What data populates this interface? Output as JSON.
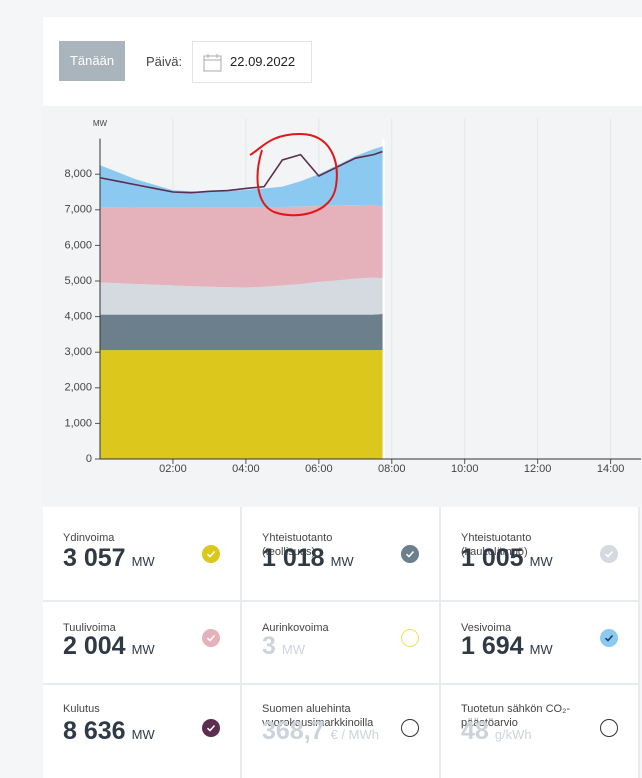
{
  "controls": {
    "today_button": "Tänään",
    "date_label": "Päivä:",
    "date": "22.09.2022"
  },
  "chart_data": {
    "type": "stacked-area",
    "y_label": "MW",
    "x": [
      "00:00",
      "00:30",
      "01:00",
      "01:30",
      "02:00",
      "02:30",
      "03:00",
      "03:30",
      "04:00",
      "04:30",
      "05:00",
      "05:30",
      "06:00",
      "06:30",
      "07:00",
      "07:30",
      "07:45"
    ],
    "xlim": [
      "00:00",
      "14:50"
    ],
    "xticks": [
      "02:00",
      "04:00",
      "06:00",
      "08:00",
      "10:00",
      "12:00",
      "14:00"
    ],
    "ylim": [
      0,
      9000
    ],
    "yticks": [
      0,
      {
        "value": 1000,
        "label": "1,000"
      },
      {
        "value": 2000,
        "label": "2,000"
      },
      {
        "value": 3000,
        "label": "3,000"
      },
      {
        "value": 4000,
        "label": "4,000"
      },
      {
        "value": 5000,
        "label": "5,000"
      },
      {
        "value": 6000,
        "label": "6,000"
      },
      {
        "value": 7000,
        "label": "7,000"
      },
      {
        "value": 8000,
        "label": "8,000"
      }
    ],
    "grid": true,
    "series": [
      {
        "name": "Ydinvoima",
        "color": "#dcc71c",
        "values": [
          3057,
          3057,
          3057,
          3057,
          3057,
          3057,
          3057,
          3057,
          3057,
          3057,
          3057,
          3057,
          3057,
          3057,
          3057,
          3057,
          3057
        ]
      },
      {
        "name": "Yhteistuotanto (teollisuus)",
        "color": "#6b7f8c",
        "values": [
          1000,
          1000,
          1000,
          1000,
          1000,
          1000,
          1000,
          1000,
          1000,
          1000,
          1000,
          1000,
          1000,
          1000,
          1000,
          1000,
          1018
        ]
      },
      {
        "name": "Yhteistuotanto (kaukolämpö)",
        "color": "#d5dae0",
        "values": [
          900,
          880,
          860,
          840,
          820,
          800,
          780,
          770,
          760,
          780,
          820,
          860,
          920,
          960,
          1010,
          1040,
          1005
        ]
      },
      {
        "name": "Tuulivoima",
        "color": "#e5b1bb",
        "values": [
          2100,
          2120,
          2150,
          2170,
          2190,
          2210,
          2230,
          2240,
          2250,
          2240,
          2200,
          2170,
          2130,
          2100,
          2060,
          2040,
          2004
        ]
      },
      {
        "name": "Aurinkovoima",
        "color": "#f3df5c",
        "values": [
          0,
          0,
          0,
          0,
          0,
          0,
          0,
          0,
          0,
          0,
          0,
          1,
          2,
          3,
          3,
          3,
          3
        ]
      },
      {
        "name": "Vesivoima",
        "color": "#8cc9f1",
        "values": [
          1193,
          993,
          783,
          633,
          483,
          453,
          433,
          453,
          493,
          523,
          573,
          713,
          893,
          1133,
          1373,
          1563,
          1694
        ]
      },
      {
        "name": "Kulutus",
        "type": "line",
        "color": "#5c2d4f",
        "values": [
          7900,
          7800,
          7700,
          7600,
          7500,
          7480,
          7520,
          7540,
          7600,
          7650,
          8400,
          8550,
          7950,
          8200,
          8450,
          8550,
          8636
        ]
      }
    ]
  },
  "tiles": [
    {
      "label": "Ydinvoima",
      "value": "3 057",
      "unit": "MW",
      "color": "#dcc71c",
      "checked": true,
      "active": true
    },
    {
      "label": "Yhteistuotanto (teollisuus)",
      "value": "1 018",
      "unit": "MW",
      "color": "#6b7f8c",
      "checked": true,
      "active": true
    },
    {
      "label": "Yhteistuotanto (kaukolämpö)",
      "value": "1 005",
      "unit": "MW",
      "color": "#d5dae0",
      "checked": true,
      "active": true
    },
    {
      "label": "Tuulivoima",
      "value": "2 004",
      "unit": "MW",
      "color": "#e5b1bb",
      "checked": true,
      "active": true
    },
    {
      "label": "Aurinkovoima",
      "value": "3",
      "unit": "MW",
      "color": "#f3df5c",
      "checked": false,
      "active": false
    },
    {
      "label": "Vesivoima",
      "value": "1 694",
      "unit": "MW",
      "color": "#8cc9f1",
      "checked": true,
      "active": true
    },
    {
      "label": "Kulutus",
      "value": "8 636",
      "unit": "MW",
      "color": "#5c2d4f",
      "checked": true,
      "active": true
    },
    {
      "label": "Suomen aluehinta vuorokausimarkkinoilla",
      "value": "368,7",
      "unit": "€ / MWh",
      "color": "#333333",
      "checked": false,
      "active": false
    },
    {
      "label": "Tuotetun sähkön CO₂-päästöarvio",
      "value": "48",
      "unit": "g/kWh",
      "color": "#333333",
      "checked": false,
      "active": false
    }
  ]
}
